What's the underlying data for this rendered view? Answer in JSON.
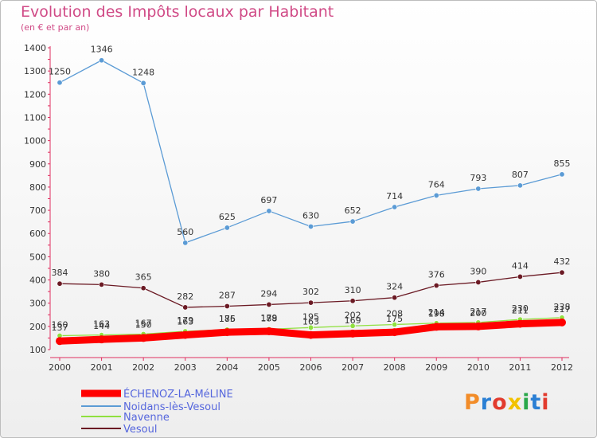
{
  "chart_data": {
    "type": "line",
    "title": "Evolution des Impôts locaux par Habitant",
    "subtitle": "(en € et par an)",
    "x": [
      "2000",
      "2001",
      "2002",
      "2003",
      "2004",
      "2005",
      "2006",
      "2007",
      "2008",
      "2009",
      "2010",
      "2011",
      "2012"
    ],
    "y_ticks": [
      "100",
      "200",
      "300",
      "400",
      "500",
      "600",
      "700",
      "800",
      "900",
      "1000",
      "1100",
      "1200",
      "1300",
      "1400"
    ],
    "ylim": [
      100,
      1400
    ],
    "grid": false,
    "legend_position": "bottom-left",
    "series": [
      {
        "name": "ÉCHENOZ-LA-MéLINE",
        "color": "#ff0000",
        "values": [
          137,
          144,
          150,
          163,
          175,
          179,
          163,
          169,
          175,
          198,
          200,
          211,
          217
        ],
        "labels": [
          "137",
          "144",
          "150",
          "163",
          "175",
          "179",
          "163",
          "169",
          "175",
          "198",
          "200",
          "211",
          "217"
        ]
      },
      {
        "name": "Noidans-lès-Vesoul",
        "color": "#5b9bd5",
        "values": [
          1250,
          1346,
          1248,
          560,
          625,
          697,
          630,
          652,
          714,
          764,
          793,
          807,
          855
        ],
        "labels": [
          "1250",
          "1346",
          "1248",
          "560",
          "625",
          "697",
          "630",
          "652",
          "714",
          "764",
          "793",
          "807",
          "855"
        ]
      },
      {
        "name": "Navenne",
        "color": "#90e040",
        "values": [
          160,
          163,
          167,
          179,
          186,
          188,
          195,
          202,
          208,
          214,
          217,
          230,
          238
        ],
        "labels": [
          "160",
          "163",
          "167",
          "179",
          "186",
          "188",
          "195",
          "202",
          "208",
          "214",
          "217",
          "230",
          "238"
        ]
      },
      {
        "name": "Vesoul",
        "color": "#6b1a24",
        "values": [
          384,
          380,
          365,
          282,
          287,
          294,
          302,
          310,
          324,
          376,
          390,
          414,
          432
        ],
        "labels": [
          "384",
          "380",
          "365",
          "282",
          "287",
          "294",
          "302",
          "310",
          "324",
          "376",
          "390",
          "414",
          "432"
        ]
      }
    ]
  },
  "logo_text": "Proxiti",
  "logo_colors": [
    "#f28c28",
    "#2a7fd4",
    "#e23b2e",
    "#f2c200",
    "#2aa84a",
    "#2a7fd4",
    "#e23b2e"
  ]
}
